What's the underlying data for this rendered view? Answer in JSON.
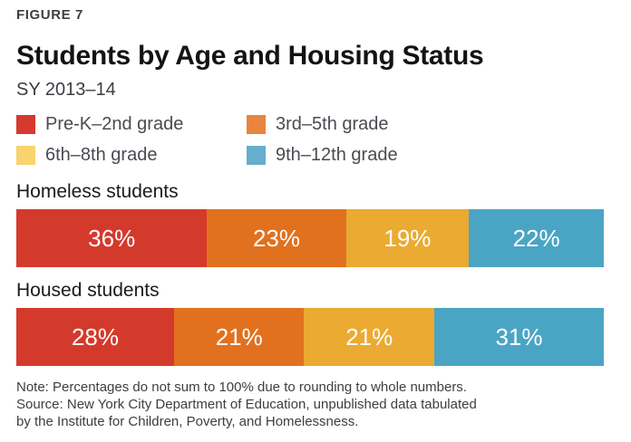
{
  "header": {
    "figure_label": "FIGURE 7",
    "title": "Students by Age and Housing Status",
    "subtitle": "SY 2013–14"
  },
  "chart_data": {
    "type": "bar",
    "variant": "horizontal-stacked-percentage",
    "title": "Students by Age and Housing Status",
    "subtitle": "SY 2013–14",
    "figure_label": "FIGURE 7",
    "categories": [
      "Pre-K–2nd grade",
      "3rd–5th grade",
      "6th–8th grade",
      "9th–12th grade"
    ],
    "series": [
      {
        "name": "Homeless students",
        "values": [
          36,
          23,
          19,
          22
        ]
      },
      {
        "name": "Housed students",
        "values": [
          28,
          21,
          21,
          31
        ]
      }
    ],
    "value_suffix": "%",
    "xlim": [
      0,
      100
    ],
    "grid": false,
    "legend_position": "top",
    "segment_colors": [
      "#d43a2b",
      "#e1711f",
      "#ebaa31",
      "#4aa5c4"
    ],
    "legend_swatch_colors": [
      "#d43a2e",
      "#e9853f",
      "#f7d46c",
      "#66aecd"
    ],
    "value_label_color": "#ffffff",
    "note_lines": [
      "Note: Percentages do not sum to 100% due to rounding to whole numbers.",
      "Source: New York City Department of Education, unpublished data tabulated",
      "by the Institute for Children, Poverty, and Homelessness."
    ]
  }
}
